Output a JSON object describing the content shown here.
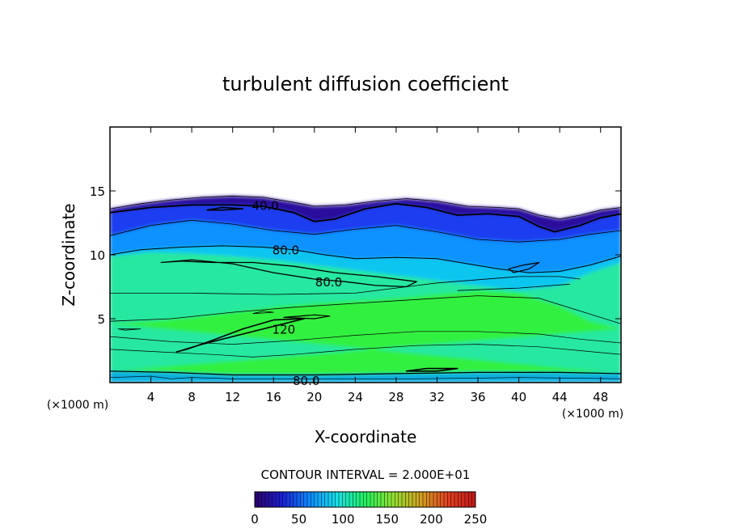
{
  "chart_data": {
    "type": "heatmap",
    "title": "turbulent diffusion coefficient",
    "xlabel": "X-coordinate",
    "ylabel": "Z-coordinate",
    "x_unit_left": "(×1000 m)",
    "x_unit_right": "(×1000 m)",
    "xlim": [
      0,
      50
    ],
    "ylim": [
      0,
      20
    ],
    "x_ticks": [
      4,
      8,
      12,
      16,
      20,
      24,
      28,
      32,
      36,
      40,
      44,
      48
    ],
    "y_ticks": [
      5,
      10,
      15
    ],
    "contour_interval_text": "CONTOUR INTERVAL = 2.000E+01",
    "colorbar": {
      "range": [
        0,
        250
      ],
      "ticks": [
        0,
        50,
        100,
        150,
        200,
        250
      ],
      "colors": [
        "#2a006a",
        "#1c1fd4",
        "#0a8cff",
        "#18e0e6",
        "#20f060",
        "#90e030",
        "#d0a020",
        "#e04020",
        "#c01818"
      ]
    },
    "region_colors": {
      "upper_background": "#7e05a8",
      "upper_boundary": "#2a0a9c",
      "band_top": "#1a3ef0",
      "band_mid": "#0a92ff",
      "band_low": "#10c6f0",
      "lower_main": "#28e8a0",
      "lower_core": "#30f040",
      "surface": "#10b0e0"
    },
    "contour_labels": [
      {
        "text": "40.0",
        "x": 15.2,
        "z": 13.9
      },
      {
        "text": "80.0",
        "x": 17.2,
        "z": 10.4
      },
      {
        "text": "80.0",
        "x": 21.4,
        "z": 7.9
      },
      {
        "text": "120",
        "x": 17.0,
        "z": 4.2
      },
      {
        "text": "80.0",
        "x": 19.2,
        "z": 0.2
      }
    ]
  }
}
